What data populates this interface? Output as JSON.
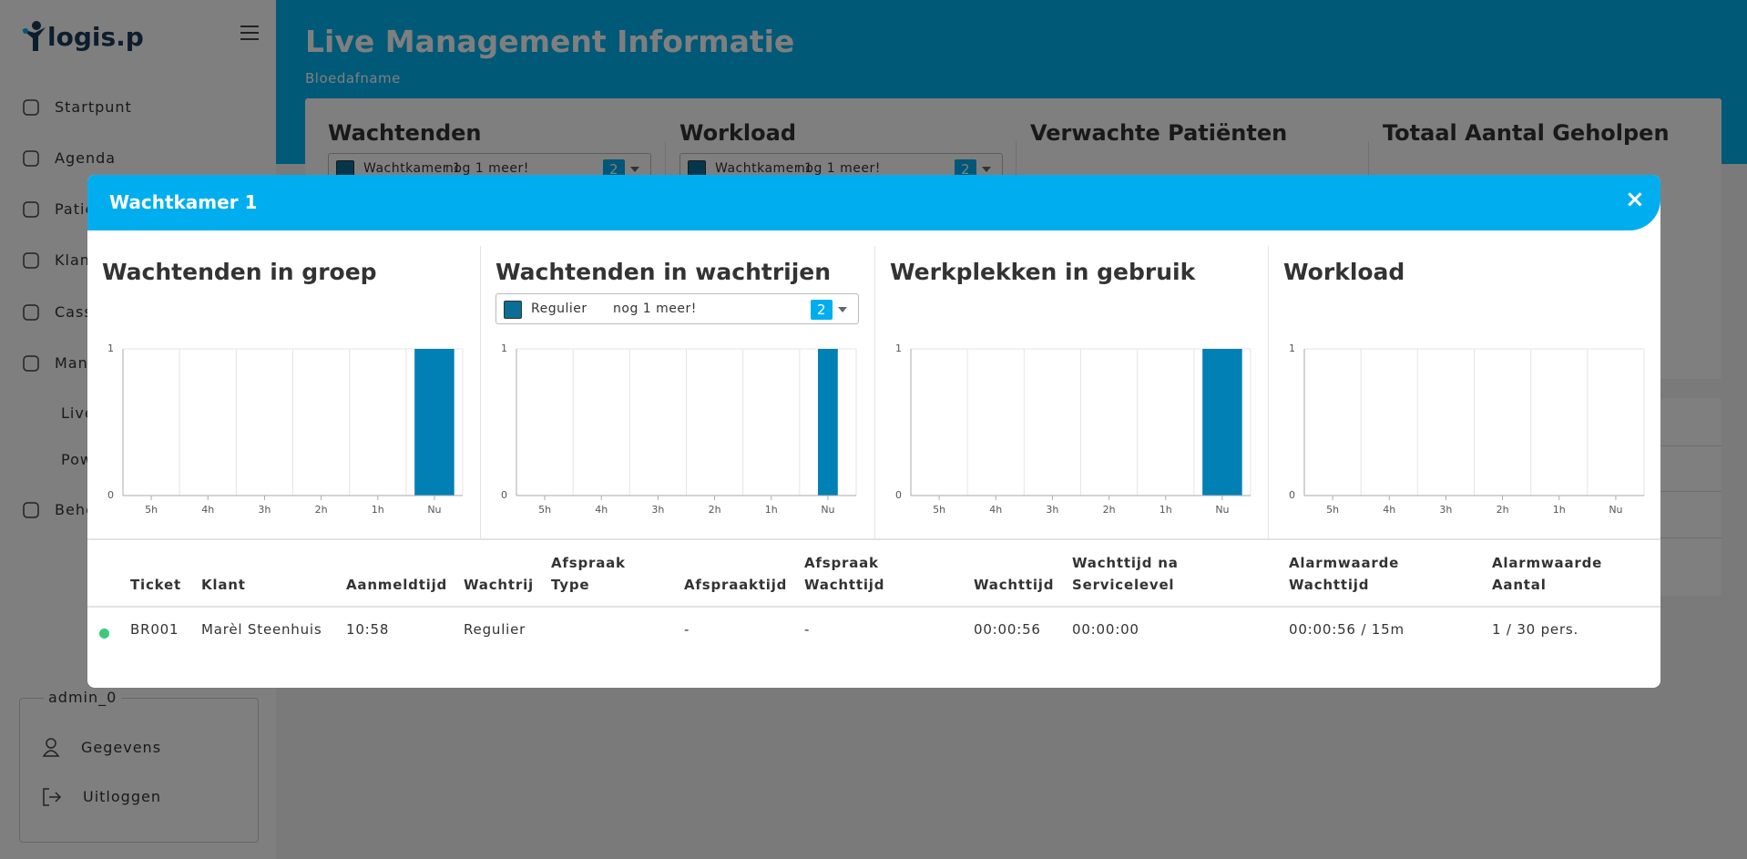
{
  "sidebar": {
    "logo": "logis.p",
    "nav": [
      "Startpunt",
      "Agenda",
      "Patie",
      "Klan",
      "Cass",
      "Man",
      "Live",
      "Pow",
      "Behe"
    ],
    "user": {
      "name": "admin_0",
      "links": [
        "Gegevens",
        "Uitloggen"
      ]
    }
  },
  "header": {
    "title": "Live Management Informatie",
    "subtitle": "Bloedafname"
  },
  "cards": [
    {
      "title": "Wachtenden",
      "select": {
        "label": "Wachtkamer 1",
        "more": "nog 1 meer!",
        "count": 2
      }
    },
    {
      "title": "Workload",
      "select": {
        "label": "Wachtkamer 1",
        "more": "nog 1 meer!",
        "count": 2
      }
    },
    {
      "title": "Verwachte Patiënten"
    },
    {
      "title": "Totaal Aantal Geholpen"
    }
  ],
  "modal": {
    "title": "Wachtkamer 1",
    "close": "×",
    "charts": [
      {
        "type": "bar",
        "title": "Wachtenden in groep",
        "categories": [
          "5h",
          "4h",
          "3h",
          "2h",
          "1h",
          "Nu"
        ],
        "values": [
          0,
          0,
          0,
          0,
          0,
          1
        ],
        "color": "#0080b4",
        "ylim": [
          0,
          1
        ],
        "yticks": [
          0,
          1
        ],
        "grid": true
      },
      {
        "type": "bar",
        "title": "Wachtenden in wachtrijen",
        "select": {
          "label": "Regulier",
          "more": "nog 1 meer!",
          "count": 2
        },
        "categories": [
          "5h",
          "4h",
          "3h",
          "2h",
          "1h",
          "Nu"
        ],
        "values": [
          0,
          0,
          0,
          0,
          0,
          1
        ],
        "color": "#0080b4",
        "ylim": [
          0,
          1
        ],
        "yticks": [
          0,
          1
        ],
        "grid": true
      },
      {
        "type": "bar",
        "title": "Werkplekken in gebruik",
        "categories": [
          "5h",
          "4h",
          "3h",
          "2h",
          "1h",
          "Nu"
        ],
        "values": [
          0,
          0,
          0,
          0,
          0,
          1
        ],
        "color": "#0080b4",
        "ylim": [
          0,
          1
        ],
        "yticks": [
          0,
          1
        ],
        "grid": true
      },
      {
        "type": "bar",
        "title": "Workload",
        "categories": [
          "5h",
          "4h",
          "3h",
          "2h",
          "1h",
          "Nu"
        ],
        "values": [
          0,
          0,
          0,
          0,
          0,
          0
        ],
        "color": "#0080b4",
        "ylim": [
          0,
          1
        ],
        "yticks": [
          0,
          1
        ],
        "grid": true
      }
    ],
    "table": {
      "headers": [
        "Ticket",
        "Klant",
        "Aanmeldtijd",
        "Wachtrij",
        "Afspraak Type",
        "Afspraaktijd",
        "Afspraak Wachttijd",
        "Wachttijd",
        "Wachttijd na Servicelevel",
        "Alarmwaarde Wachttijd",
        "Alarmwaarde Aantal"
      ],
      "rows": [
        [
          "BR001",
          "Marèl Steenhuis",
          "10:58",
          "Regulier",
          null,
          "-",
          "-",
          "00:00:56",
          "00:00:00",
          "00:00:56 / 15m",
          "1 / 30 pers."
        ]
      ]
    }
  }
}
